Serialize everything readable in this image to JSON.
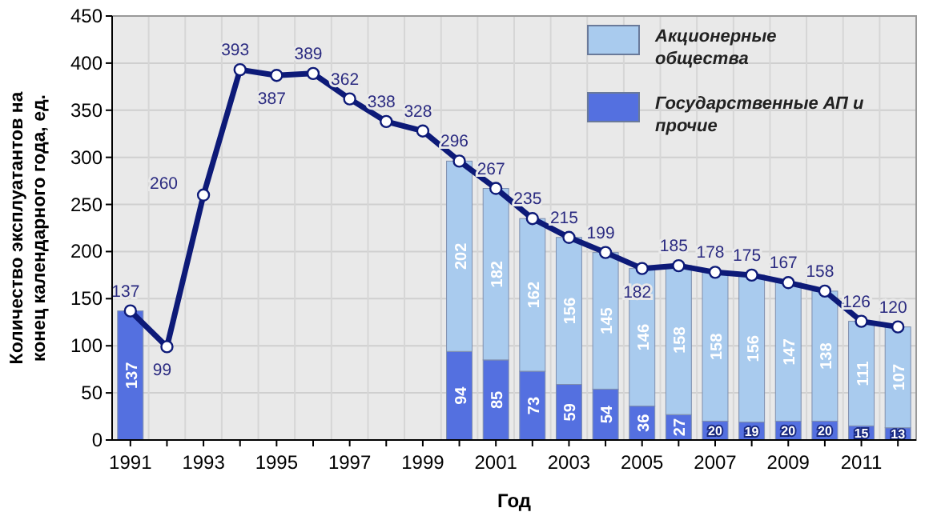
{
  "chart_data": {
    "type": "bar",
    "stacked": true,
    "xlabel": "Год",
    "ylabel": "Количество эксплуатантов на конец календарного года, ед.",
    "categories": [
      "1991",
      null,
      "1993",
      null,
      "1995",
      null,
      "1997",
      null,
      "1999",
      null,
      "2001",
      null,
      "2003",
      null,
      "2005",
      null,
      "2007",
      null,
      "2009",
      null,
      "2011",
      null
    ],
    "series": [
      {
        "name": "Государственные АП и прочие",
        "color": "#5470e0",
        "values": [
          137,
          null,
          null,
          null,
          null,
          null,
          null,
          null,
          null,
          94,
          85,
          73,
          59,
          54,
          36,
          27,
          20,
          19,
          20,
          20,
          15,
          13
        ]
      },
      {
        "name": "Акционерные общества",
        "color": "#a9cbee",
        "values": [
          null,
          null,
          null,
          null,
          null,
          null,
          null,
          null,
          null,
          202,
          182,
          162,
          156,
          145,
          146,
          158,
          158,
          156,
          147,
          138,
          111,
          107
        ]
      },
      {
        "type": "line",
        "color": "#0d1a78",
        "marker": "circle",
        "values": [
          137,
          99,
          260,
          393,
          387,
          389,
          362,
          338,
          328,
          296,
          267,
          235,
          215,
          199,
          182,
          185,
          178,
          175,
          167,
          158,
          126,
          120
        ]
      }
    ],
    "ylim": [
      0,
      450
    ],
    "yticks": [
      0,
      50,
      100,
      150,
      200,
      250,
      300,
      350,
      400,
      450
    ],
    "grid": true,
    "legend": "top right",
    "data_labels": true
  }
}
